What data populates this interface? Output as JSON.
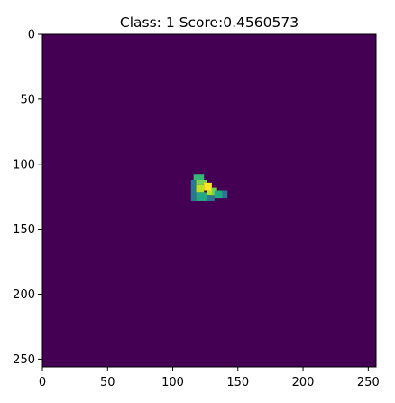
{
  "chart_data": {
    "type": "heatmap",
    "title": "Class: 1 Score:0.4560573",
    "xlabel": "",
    "ylabel": "",
    "image_size": [
      256,
      256
    ],
    "xlim": [
      0,
      256
    ],
    "ylim": [
      256,
      0
    ],
    "x_ticks": [
      0,
      50,
      100,
      150,
      200,
      250
    ],
    "y_ticks": [
      0,
      50,
      100,
      150,
      200,
      250
    ],
    "x_tick_labels": [
      "0",
      "50",
      "100",
      "150",
      "200",
      "250"
    ],
    "y_tick_labels": [
      "0",
      "50",
      "100",
      "150",
      "200",
      "250"
    ],
    "colormap": "viridis",
    "background_color": "#440154",
    "grid": false,
    "blob": {
      "description": "small bright region (boot/shoe-like shape)",
      "x_range": [
        114,
        142
      ],
      "y_range": [
        106,
        130
      ],
      "peak": [
        125,
        116
      ],
      "cells": [
        {
          "x": 116,
          "y": 108,
          "w": 8,
          "h": 4,
          "color": "#35b779"
        },
        {
          "x": 114,
          "y": 112,
          "w": 4,
          "h": 16,
          "color": "#2a788e"
        },
        {
          "x": 118,
          "y": 112,
          "w": 8,
          "h": 4,
          "color": "#7ad151"
        },
        {
          "x": 118,
          "y": 116,
          "w": 6,
          "h": 6,
          "color": "#bddf26"
        },
        {
          "x": 124,
          "y": 114,
          "w": 6,
          "h": 6,
          "color": "#fde725"
        },
        {
          "x": 118,
          "y": 122,
          "w": 8,
          "h": 6,
          "color": "#22a884"
        },
        {
          "x": 126,
          "y": 120,
          "w": 6,
          "h": 4,
          "color": "#bddf26"
        },
        {
          "x": 126,
          "y": 124,
          "w": 6,
          "h": 4,
          "color": "#2a788e"
        },
        {
          "x": 130,
          "y": 118,
          "w": 4,
          "h": 6,
          "color": "#7ad151"
        },
        {
          "x": 132,
          "y": 120,
          "w": 6,
          "h": 6,
          "color": "#22a884"
        },
        {
          "x": 138,
          "y": 120,
          "w": 4,
          "h": 6,
          "color": "#2a788e"
        }
      ]
    }
  }
}
